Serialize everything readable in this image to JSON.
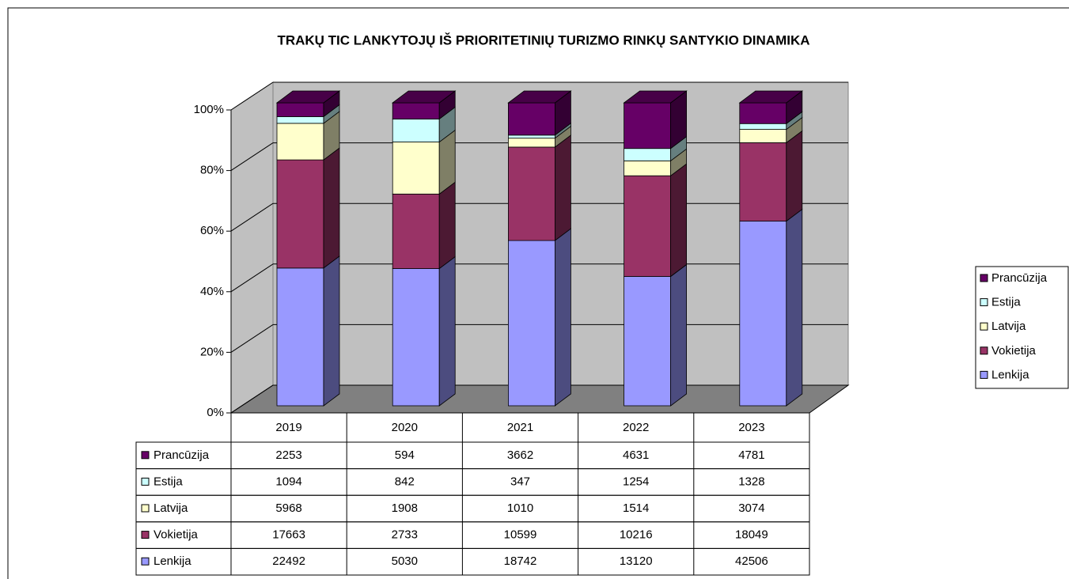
{
  "chart_data": {
    "type": "bar",
    "stacking": "percent",
    "title": "TRAKŲ TIC LANKYTOJŲ IŠ PRIORITETINIŲ TURIZMO RINKŲ SANTYKIO DINAMIKA",
    "categories": [
      "2019",
      "2020",
      "2021",
      "2022",
      "2023"
    ],
    "series": [
      {
        "name": "Lenkija",
        "color": "#9999ff",
        "values": [
          22492,
          5030,
          18742,
          13120,
          42506
        ]
      },
      {
        "name": "Vokietija",
        "color": "#993366",
        "values": [
          17663,
          2733,
          10599,
          10216,
          18049
        ]
      },
      {
        "name": "Latvija",
        "color": "#ffffcc",
        "values": [
          5968,
          1908,
          1010,
          1514,
          3074
        ]
      },
      {
        "name": "Estija",
        "color": "#ccffff",
        "values": [
          1094,
          842,
          347,
          1254,
          1328
        ]
      },
      {
        "name": "Prancūzija",
        "color": "#660066",
        "values": [
          2253,
          594,
          3662,
          4631,
          4781
        ]
      }
    ],
    "ylim": [
      0,
      100
    ],
    "yticks": [
      {
        "value": 0,
        "label": "0%"
      },
      {
        "value": 20,
        "label": "20%"
      },
      {
        "value": 40,
        "label": "40%"
      },
      {
        "value": 60,
        "label": "60%"
      },
      {
        "value": 80,
        "label": "80%"
      },
      {
        "value": 100,
        "label": "100%"
      }
    ],
    "grid": true,
    "legend": "right",
    "data_table": true
  }
}
